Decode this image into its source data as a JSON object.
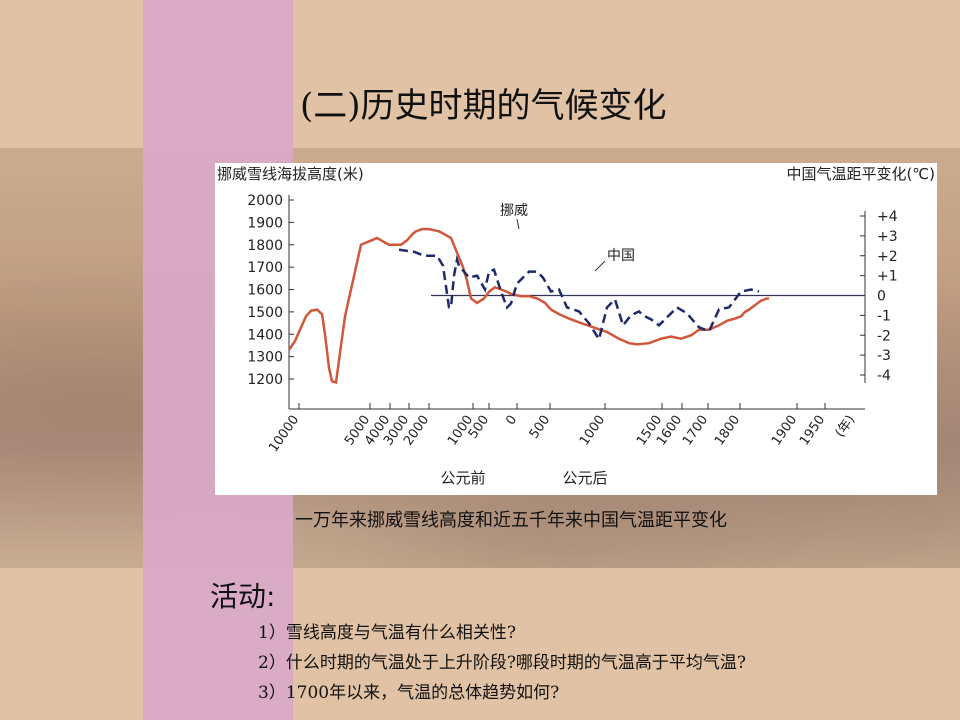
{
  "slide": {
    "title": "(二)历史时期的气候变化",
    "caption": "一万年来挪威雪线高度和近五千年来中国气温距平变化",
    "activity_heading": "活动:",
    "questions": [
      "1）雪线高度与气温有什么相关性?",
      "2）什么时期的气温处于上升阶段?哪段时期的气温高于平均气温?",
      "3）1700年以来，气温的总体趋势如何?"
    ]
  },
  "colors": {
    "norway_line": "#d0573a",
    "china_line": "#1f2a6b",
    "baseline": "#333355",
    "pink_stripe": "#d9a9c8"
  },
  "chart_data": {
    "type": "line",
    "left_axis_label": "挪威雪线海拔高度(米)",
    "right_axis_label": "中国气温距平变化(℃)",
    "left_ticks": [
      "2000",
      "1900",
      "1800",
      "1700",
      "1600",
      "1500",
      "1400",
      "1300",
      "1200"
    ],
    "right_ticks": [
      "+4",
      "+3",
      "+2",
      "+1",
      "0",
      "-1",
      "-2",
      "-3",
      "-4"
    ],
    "x_ticks": [
      "10000",
      "5000",
      "4000",
      "3000",
      "2000",
      "1000",
      "500",
      "0",
      "500",
      "1000",
      "1500",
      "1600",
      "1700",
      "1800",
      "1900",
      "1950"
    ],
    "x_unit": "(年)",
    "era_labels": [
      "公元前",
      "公元后"
    ],
    "series": [
      {
        "name": "挪威",
        "axis": "left",
        "x": [
          0,
          6,
          12,
          17,
          22,
          28,
          33,
          36,
          40,
          43,
          47,
          56,
          72,
          88,
          100,
          112,
          118,
          124,
          127,
          133,
          140,
          150,
          162,
          174,
          178,
          182,
          188,
          195,
          200,
          206,
          212,
          218,
          222,
          227,
          232,
          240,
          248,
          256,
          262,
          270,
          280,
          292,
          305,
          318,
          330,
          340,
          348,
          360,
          372,
          382,
          392,
          402,
          410,
          420,
          430,
          438,
          446,
          452,
          456,
          460,
          466,
          472,
          478,
          480
        ],
        "y": [
          1330,
          1370,
          1430,
          1480,
          1505,
          1510,
          1490,
          1400,
          1250,
          1190,
          1185,
          1480,
          1800,
          1830,
          1800,
          1800,
          1820,
          1850,
          1860,
          1870,
          1870,
          1860,
          1830,
          1700,
          1640,
          1560,
          1540,
          1560,
          1590,
          1610,
          1600,
          1590,
          1580,
          1575,
          1570,
          1570,
          1560,
          1540,
          1510,
          1490,
          1470,
          1450,
          1430,
          1410,
          1380,
          1360,
          1355,
          1360,
          1380,
          1390,
          1380,
          1395,
          1420,
          1420,
          1440,
          1460,
          1470,
          1480,
          1500,
          1510,
          1530,
          1550,
          1560,
          1560
        ]
      },
      {
        "name": "中国",
        "axis": "right",
        "x": [
          110,
          125,
          135,
          148,
          154,
          160,
          162,
          165,
          168,
          170,
          180,
          188,
          196,
          200,
          205,
          212,
          218,
          222,
          228,
          236,
          240,
          248,
          254,
          262,
          270,
          278,
          290,
          300,
          310,
          318,
          326,
          334,
          342,
          350,
          354,
          362,
          370,
          380,
          388,
          398,
          410,
          420,
          430,
          440,
          452,
          462,
          470
        ],
        "y": [
          2.3,
          2.2,
          2,
          2,
          1.5,
          -0.6,
          -0.6,
          1,
          1.8,
          1.5,
          0.9,
          1,
          0.3,
          1.2,
          1.3,
          0.2,
          -0.6,
          -0.4,
          0.6,
          1,
          1.2,
          1.2,
          0.9,
          0.2,
          0.3,
          -0.6,
          -0.8,
          -1.4,
          -2.2,
          -0.6,
          -0.2,
          -1.5,
          -1,
          -0.8,
          -1,
          -1.2,
          -1.5,
          -1,
          -0.6,
          -0.9,
          -1.6,
          -1.8,
          -0.7,
          -0.6,
          0.2,
          0.3,
          0.2
        ]
      }
    ],
    "ylim_left": [
      1200,
      2000
    ],
    "ylim_right": [
      -4,
      4
    ],
    "reference_line_right": 0
  }
}
